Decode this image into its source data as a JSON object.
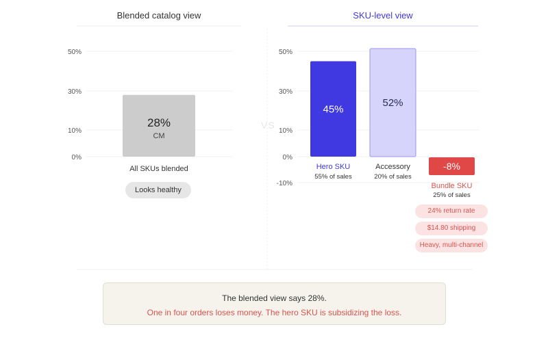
{
  "panels": {
    "left_title": "Blended catalog view",
    "right_title": "SKU-level view",
    "vs_label": "VS"
  },
  "left_badge": "Looks healthy",
  "right_badges": [
    "24% return rate",
    "$14.80 shipping",
    "Heavy, multi-channel"
  ],
  "note": {
    "line1": "The blended view says 28%.",
    "line2": "One in four orders loses money. The hero SKU is subsidizing the loss."
  },
  "colors": {
    "blended": "#cccccc",
    "hero": "#4038e0",
    "accessory": "#d6d4fb",
    "bundle": "#e04848",
    "negative_text": "#d9534f"
  },
  "chart_data": [
    {
      "type": "bar",
      "title": "Blended catalog view",
      "y_ticks": [
        "50%",
        "30%",
        "10%",
        "0%"
      ],
      "ylim": [
        0,
        50
      ],
      "categories": [
        "All SKUs blended"
      ],
      "values": [
        28
      ],
      "value_labels": [
        "28%"
      ],
      "value_sublabels": [
        "CM"
      ]
    },
    {
      "type": "bar",
      "title": "SKU-level view",
      "y_ticks": [
        "50%",
        "30%",
        "10%",
        "0%",
        "-10%"
      ],
      "ylim": [
        -10,
        50
      ],
      "categories": [
        "Hero SKU",
        "Accessory",
        "Bundle SKU"
      ],
      "values": [
        45,
        52,
        -8
      ],
      "value_labels": [
        "45%",
        "52%",
        "-8%"
      ],
      "shares": [
        "55% of sales",
        "20% of sales",
        "25% of sales"
      ]
    }
  ]
}
